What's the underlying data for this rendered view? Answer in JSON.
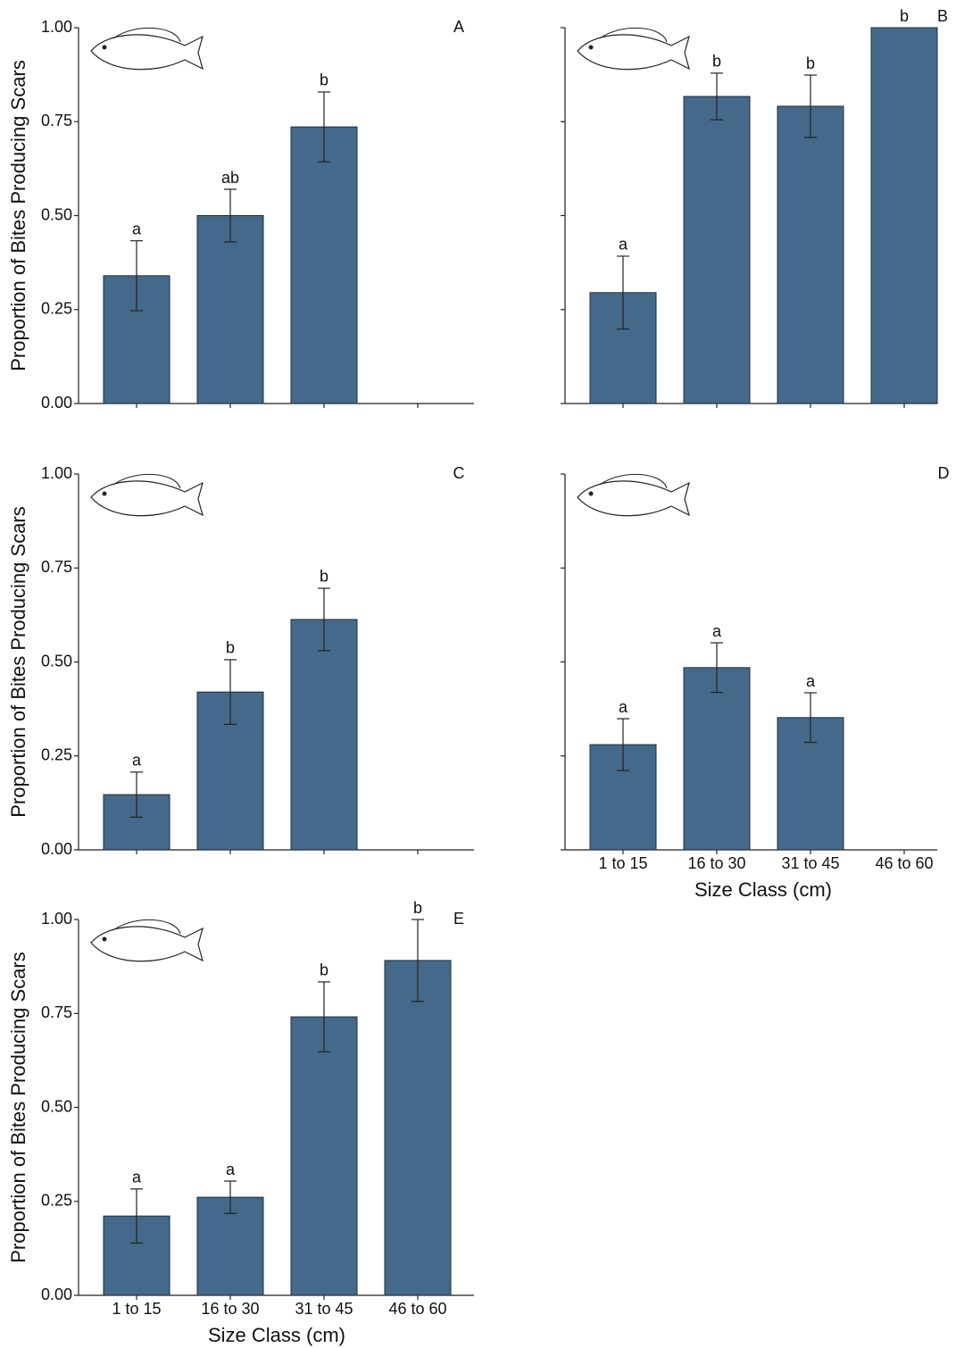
{
  "chart_data": [
    {
      "type": "bar",
      "panel": "A",
      "ylabel": "Proportion of Bites Producing Scars",
      "categories": [
        null,
        null,
        null,
        null
      ],
      "values": [
        0.34,
        0.5,
        0.736,
        null
      ],
      "errors": [
        0.093,
        0.07,
        0.093,
        null
      ],
      "sig_letters": [
        "a",
        "ab",
        "b",
        null
      ],
      "color": "#44698a",
      "ylim": [
        0,
        1
      ],
      "yticks": [
        {
          "value": 0,
          "label": "0.00"
        },
        {
          "value": 0.25,
          "label": "0.25"
        },
        {
          "value": 0.5,
          "label": "0.50"
        },
        {
          "value": 0.75,
          "label": "0.75"
        },
        {
          "value": 1,
          "label": "1.00"
        }
      ],
      "tick_labels": true
    },
    {
      "type": "bar",
      "panel": "B",
      "categories": [
        null,
        null,
        null,
        null
      ],
      "values": [
        0.295,
        0.817,
        0.791,
        1.0
      ],
      "errors": [
        0.097,
        0.062,
        0.083,
        null
      ],
      "sig_letters": [
        "a",
        "b",
        "b",
        "b"
      ],
      "color": "#44698a",
      "ylim": [
        0,
        1
      ],
      "yticks": [
        0,
        0.25,
        0.5,
        0.75,
        1
      ],
      "tick_labels": false
    },
    {
      "type": "bar",
      "panel": "C",
      "ylabel": "Proportion of Bites Producing Scars",
      "categories": [
        null,
        null,
        null,
        null
      ],
      "values": [
        0.147,
        0.42,
        0.613,
        null
      ],
      "errors": [
        0.06,
        0.086,
        0.083,
        null
      ],
      "sig_letters": [
        "a",
        "b",
        "b",
        null
      ],
      "color": "#44698a",
      "ylim": [
        0,
        1
      ],
      "yticks": [
        {
          "value": 0,
          "label": "0.00"
        },
        {
          "value": 0.25,
          "label": "0.25"
        },
        {
          "value": 0.5,
          "label": "0.50"
        },
        {
          "value": 0.75,
          "label": "0.75"
        },
        {
          "value": 1,
          "label": "1.00"
        }
      ],
      "tick_labels": true
    },
    {
      "type": "bar",
      "panel": "D",
      "xlabel": "Size Class (cm)",
      "categories": [
        "1 to 15",
        "16 to 30",
        "31 to 45",
        "46 to 60"
      ],
      "values": [
        0.28,
        0.485,
        0.352,
        null
      ],
      "errors": [
        0.069,
        0.066,
        0.066,
        null
      ],
      "sig_letters": [
        "a",
        "a",
        "a",
        null
      ],
      "color": "#44698a",
      "ylim": [
        0,
        1
      ],
      "yticks": [
        0,
        0.25,
        0.5,
        0.75,
        1
      ],
      "tick_labels": false
    },
    {
      "type": "bar",
      "panel": "E",
      "ylabel": "Proportion of Bites Producing Scars",
      "xlabel": "Size Class (cm)",
      "categories": [
        "1 to 15",
        "16 to 30",
        "31 to 45",
        "46 to 60"
      ],
      "values": [
        0.211,
        0.261,
        0.741,
        0.891
      ],
      "errors": [
        0.072,
        0.043,
        0.093,
        0.109
      ],
      "sig_letters": [
        "a",
        "a",
        "b",
        "b"
      ],
      "color": "#44698a",
      "ylim": [
        0,
        1
      ],
      "yticks": [
        {
          "value": 0,
          "label": "0.00"
        },
        {
          "value": 0.25,
          "label": "0.25"
        },
        {
          "value": 0.5,
          "label": "0.50"
        },
        {
          "value": 0.75,
          "label": "0.75"
        },
        {
          "value": 1,
          "label": "1.00"
        }
      ],
      "tick_labels": true
    }
  ]
}
